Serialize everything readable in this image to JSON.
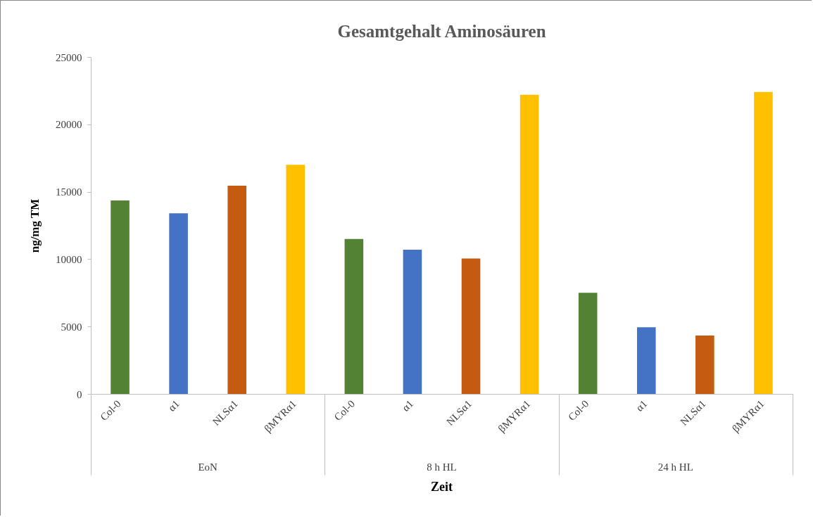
{
  "chart_data": {
    "type": "bar",
    "title": "Gesamtgehalt Aminosäuren",
    "xlabel": "Zeit",
    "ylabel": "ng/mg TM",
    "categories": [
      "EoN",
      "8 h HL",
      "24 h HL"
    ],
    "series": [
      {
        "name": "Col-0",
        "color": "#548235",
        "values": [
          14350,
          11500,
          7500
        ]
      },
      {
        "name": "α1",
        "color": "#4472c4",
        "values": [
          13400,
          10700,
          4950
        ]
      },
      {
        "name": "NLSα1",
        "color": "#c55a11",
        "values": [
          15450,
          10050,
          4330
        ]
      },
      {
        "name": "βMYRα1",
        "color": "#ffc000",
        "values": [
          17000,
          22200,
          22400
        ]
      }
    ],
    "ylim": [
      0,
      25000
    ],
    "yticks": [
      0,
      5000,
      10000,
      15000,
      20000,
      25000
    ]
  }
}
